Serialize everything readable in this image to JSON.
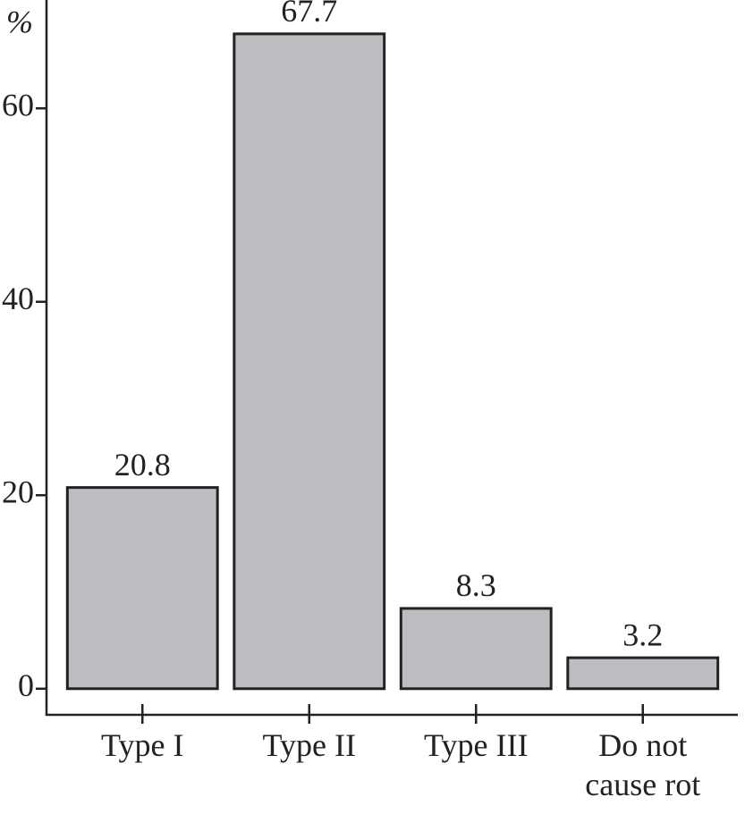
{
  "chart_data": {
    "type": "bar",
    "y_label": "%",
    "categories": [
      "Type I",
      "Type II",
      "Type III",
      "Do not cause rot"
    ],
    "values": [
      20.8,
      67.7,
      8.3,
      3.2
    ],
    "color": "#bcbdc0",
    "ylim": [
      -2.7,
      71.2
    ],
    "yticks": [
      0,
      20,
      40,
      60
    ],
    "grid": false
  }
}
